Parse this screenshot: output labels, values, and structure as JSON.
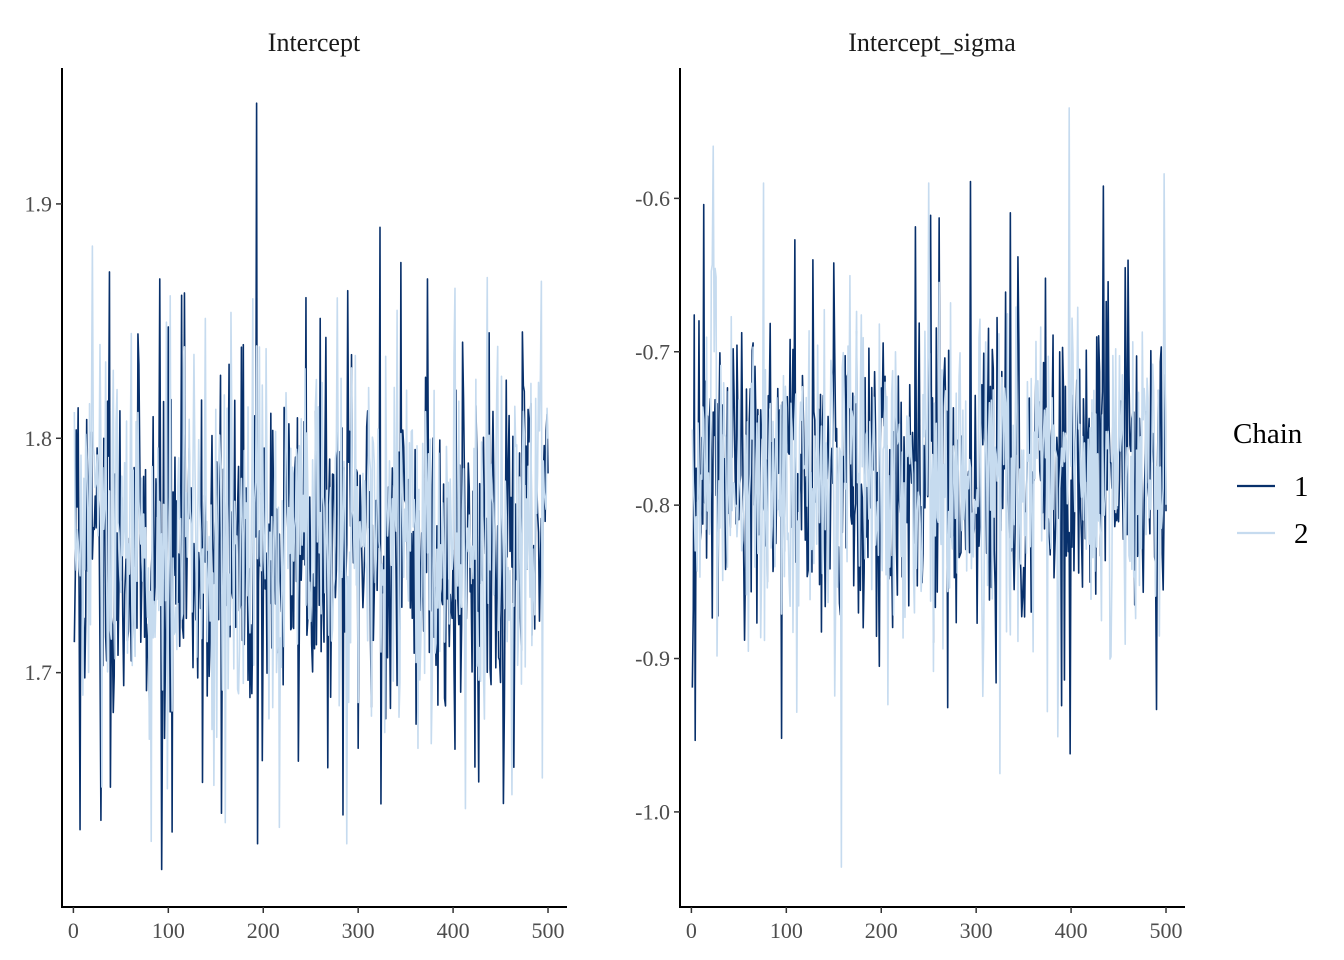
{
  "chart_data": {
    "type": "line",
    "legend": {
      "title": "Chain",
      "position": "right",
      "entries": [
        {
          "label": "1",
          "color": "#08306b"
        },
        {
          "label": "2",
          "color": "#c6dbef"
        }
      ]
    },
    "panels": [
      {
        "title": "Intercept",
        "xlim": [
          -12,
          520
        ],
        "ylim": [
          1.6,
          1.958
        ],
        "xticks": [
          0,
          100,
          200,
          300,
          400,
          500
        ],
        "xtick_labels": [
          "0",
          "100",
          "200",
          "300",
          "400",
          "500"
        ],
        "yticks": [
          1.7,
          1.8,
          1.9
        ],
        "ytick_labels": [
          "1.7",
          "1.8",
          "1.9"
        ],
        "grid": false,
        "series": [
          {
            "name": "1",
            "color": "#08306b",
            "n": 500,
            "mean": 1.752,
            "sd": 0.04,
            "seed": 11,
            "extremes": [
              [
                1,
                1.713
              ],
              [
                5,
                1.813
              ],
              [
                7,
                1.633
              ],
              [
                14,
                1.808
              ],
              [
                29,
                1.637
              ],
              [
                38,
                1.871
              ],
              [
                61,
                1.705
              ],
              [
                91,
                1.868
              ],
              [
                93,
                1.616
              ],
              [
                104,
                1.632
              ],
              [
                117,
                1.862
              ],
              [
                156,
                1.64
              ],
              [
                193,
                1.943
              ],
              [
                194,
                1.627
              ],
              [
                245,
                1.86
              ],
              [
                289,
                1.863
              ],
              [
                323,
                1.89
              ],
              [
                324,
                1.644
              ],
              [
                345,
                1.875
              ],
              [
                373,
                1.868
              ],
              [
                410,
                1.841
              ],
              [
                438,
                1.845
              ],
              [
                475,
                1.82
              ],
              [
                500,
                1.785
              ]
            ]
          },
          {
            "name": "2",
            "color": "#c6dbef",
            "n": 500,
            "mean": 1.755,
            "sd": 0.04,
            "seed": 29,
            "extremes": [
              [
                20,
                1.882
              ],
              [
                28,
                1.84
              ],
              [
                82,
                1.628
              ],
              [
                116,
                1.825
              ],
              [
                160,
                1.636
              ],
              [
                196,
                1.839
              ],
              [
                217,
                1.634
              ],
              [
                288,
                1.627
              ],
              [
                329,
                1.835
              ],
              [
                402,
                1.864
              ],
              [
                413,
                1.642
              ],
              [
                493,
                1.867
              ]
            ]
          }
        ]
      },
      {
        "title": "Intercept_sigma",
        "xlim": [
          -12,
          520
        ],
        "ylim": [
          -1.062,
          -0.515
        ],
        "xticks": [
          0,
          100,
          200,
          300,
          400,
          500
        ],
        "xtick_labels": [
          "0",
          "100",
          "200",
          "300",
          "400",
          "500"
        ],
        "yticks": [
          -0.6,
          -0.7,
          -0.8,
          -0.9,
          -1.0
        ],
        "ytick_labels": [
          "-0.6",
          "-0.7",
          "-0.8",
          "-0.9",
          "-1.0"
        ],
        "grid": false,
        "series": [
          {
            "name": "1",
            "color": "#08306b",
            "n": 500,
            "mean": -0.78,
            "sd": 0.055,
            "seed": 47,
            "extremes": [
              [
                1,
                -0.919
              ],
              [
                3,
                -0.676
              ],
              [
                95,
                -0.952
              ],
              [
                109,
                -0.627
              ],
              [
                252,
                -0.611
              ],
              [
                270,
                -0.932
              ],
              [
                294,
                -0.589
              ],
              [
                393,
                -0.914
              ],
              [
                434,
                -0.592
              ],
              [
                500,
                -0.804
              ]
            ]
          },
          {
            "name": "2",
            "color": "#c6dbef",
            "n": 500,
            "mean": -0.782,
            "sd": 0.055,
            "seed": 83,
            "extremes": [
              [
                23,
                -0.566
              ],
              [
                76,
                -0.59
              ],
              [
                158,
                -1.036
              ],
              [
                250,
                -0.59
              ],
              [
                325,
                -0.975
              ],
              [
                386,
                -0.951
              ],
              [
                398,
                -0.541
              ],
              [
                498,
                -0.584
              ]
            ]
          }
        ]
      }
    ]
  }
}
